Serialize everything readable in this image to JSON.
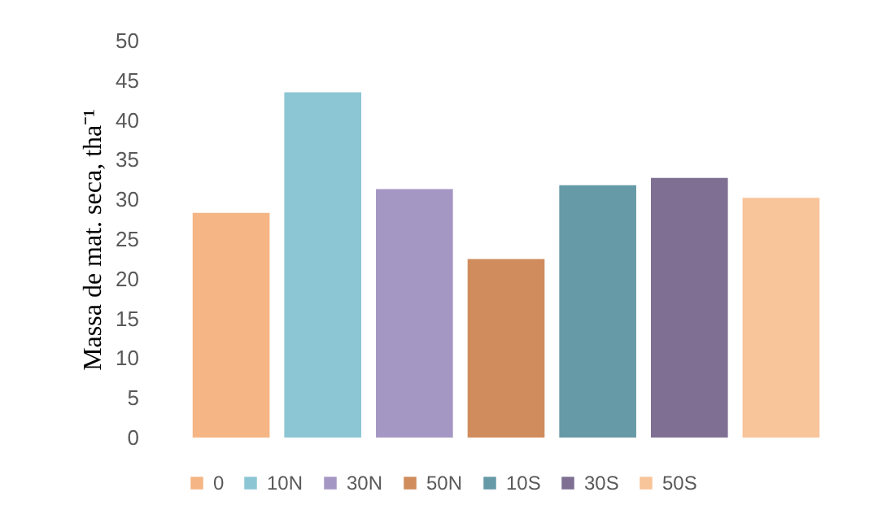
{
  "chart_data": {
    "type": "bar",
    "ylabel": "Massa de mat. seca, tha⁻¹",
    "categories": [
      null
    ],
    "series": [
      {
        "name": "0",
        "color": "#f5b584",
        "values": [
          28.3
        ]
      },
      {
        "name": "10N",
        "color": "#8cc6d4",
        "values": [
          43.5
        ]
      },
      {
        "name": "30N",
        "color": "#a597c3",
        "values": [
          31.3
        ]
      },
      {
        "name": "50N",
        "color": "#d08c5c",
        "values": [
          22.5
        ]
      },
      {
        "name": "10S",
        "color": "#669aa6",
        "values": [
          31.8
        ]
      },
      {
        "name": "30S",
        "color": "#7f7093",
        "values": [
          32.7
        ]
      },
      {
        "name": "50S",
        "color": "#f8c49a",
        "values": [
          30.2
        ]
      }
    ],
    "ylim": [
      0,
      50
    ],
    "yticks": [
      0,
      5,
      10,
      15,
      20,
      25,
      30,
      35,
      40,
      45,
      50
    ],
    "grid": false,
    "legend": "bottom"
  }
}
